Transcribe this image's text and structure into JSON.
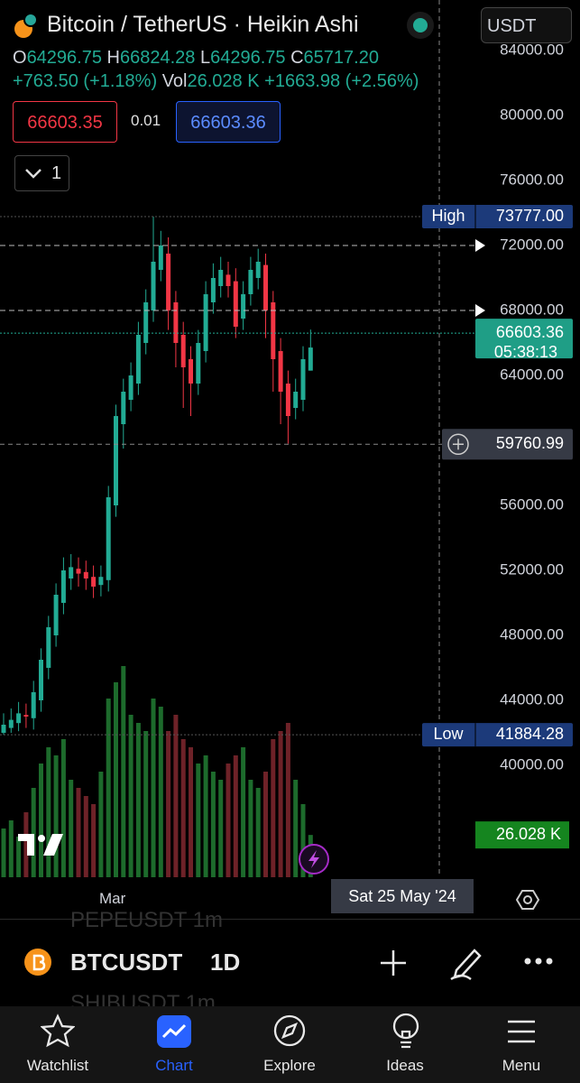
{
  "header": {
    "symbol_title": "Bitcoin / TetherUS · Heikin Ashi",
    "currency": "USDT",
    "ohlc": [
      {
        "key": "O",
        "value": "64296.75"
      },
      {
        "key": "H",
        "value": "66824.28"
      },
      {
        "key": "L",
        "value": "64296.75"
      },
      {
        "key": "C",
        "value": "65717.20"
      }
    ],
    "change": "+763.50 (+1.18%)",
    "vol_key": "Vol",
    "vol_value": "26.028 K",
    "vol_change": "+1663.98 (+2.56%)",
    "sell_price": "66603.35",
    "spread": "0.01",
    "buy_price": "66603.36",
    "indicator_count": "1"
  },
  "chart_data": {
    "type": "candlestick",
    "up_color": "#22ab94",
    "down_color": "#f23645",
    "up_volume_color": "#1d6b2c",
    "down_volume_color": "#6e2228",
    "grid": false,
    "open": [
      42000,
      42300,
      42600,
      43100,
      42900,
      44000,
      46000,
      48000,
      50000,
      51500,
      52100,
      51900,
      51600,
      51100,
      51400,
      56000,
      61000,
      62500,
      63500,
      66000,
      68000,
      70500,
      71500,
      68500,
      66500,
      65000,
      63500,
      65500,
      68500,
      69500,
      70200,
      69800,
      67500,
      69000,
      70000,
      70800,
      68500,
      65500,
      63500,
      62000,
      62500,
      64296.75
    ],
    "high": [
      43200,
      43500,
      43900,
      43800,
      45200,
      47200,
      49200,
      51200,
      52800,
      53000,
      52800,
      52600,
      52300,
      52300,
      57200,
      62200,
      63800,
      64800,
      67300,
      69300,
      73777,
      72900,
      72500,
      69200,
      67300,
      65800,
      66800,
      69800,
      70900,
      71300,
      71000,
      70600,
      69800,
      71300,
      71800,
      71500,
      69200,
      66300,
      64300,
      63800,
      65800,
      66824.28
    ],
    "low": [
      41884.28,
      42000,
      42100,
      42300,
      42200,
      43300,
      45300,
      47300,
      49300,
      50800,
      51000,
      50800,
      50300,
      50400,
      50700,
      55300,
      59500,
      61800,
      62800,
      65300,
      67300,
      69800,
      66800,
      64500,
      62000,
      61500,
      62800,
      64800,
      67800,
      68800,
      68800,
      66300,
      66800,
      68300,
      69300,
      66300,
      63000,
      61000,
      59800,
      61300,
      61800,
      64296.75
    ],
    "close": [
      42500,
      42800,
      43200,
      43000,
      44500,
      46500,
      48500,
      50500,
      52000,
      52200,
      51800,
      51500,
      51000,
      51600,
      56500,
      61500,
      63000,
      64000,
      66500,
      68500,
      71000,
      72000,
      68000,
      66000,
      64500,
      63500,
      66000,
      69000,
      70000,
      70500,
      69500,
      67000,
      69000,
      70500,
      71000,
      68000,
      65000,
      63000,
      61500,
      63000,
      65000,
      65717.2
    ],
    "volume": [
      30,
      35,
      25,
      40,
      55,
      70,
      80,
      75,
      85,
      60,
      55,
      50,
      45,
      65,
      110,
      120,
      130,
      100,
      95,
      90,
      110,
      105,
      90,
      100,
      85,
      80,
      70,
      75,
      65,
      60,
      70,
      75,
      80,
      60,
      55,
      65,
      85,
      90,
      95,
      60,
      45,
      26.028
    ],
    "volume_label": "26.028 K",
    "ylim": [
      33111,
      87111
    ],
    "yticks": [
      {
        "value": 84000,
        "label": "84000.00"
      },
      {
        "value": 80000,
        "label": "80000.00"
      },
      {
        "value": 76000,
        "label": "76000.00"
      },
      {
        "value": 72000,
        "label": "72000.00"
      },
      {
        "value": 68000,
        "label": "68000.00"
      },
      {
        "value": 64000,
        "label": "64000.00"
      },
      {
        "value": 56000,
        "label": "56000.00"
      },
      {
        "value": 52000,
        "label": "52000.00"
      },
      {
        "value": 48000,
        "label": "48000.00"
      },
      {
        "value": 44000,
        "label": "44000.00"
      },
      {
        "value": 40000,
        "label": "40000.00"
      }
    ],
    "x_label": "Mar",
    "markers": [
      {
        "name": "High",
        "value": 73777,
        "label": "73777.00"
      },
      {
        "name": "Low",
        "value": 41884.28,
        "label": "41884.28"
      }
    ],
    "alerts": [
      72000,
      68000
    ],
    "last_price": {
      "value": 66603.36,
      "label": "66603.36",
      "countdown": "05:38:13"
    },
    "crosshair": {
      "value": 59760.99,
      "label": "59760.99",
      "date": "Sat 25 May '24"
    }
  },
  "symbol_bar": {
    "prev": "PEPEUSDT 1m",
    "symbol": "BTCUSDT",
    "interval": "1D",
    "next": "SHIBUSDT 1m"
  },
  "nav": [
    {
      "label": "Watchlist"
    },
    {
      "label": "Chart"
    },
    {
      "label": "Explore"
    },
    {
      "label": "Ideas"
    },
    {
      "label": "Menu"
    }
  ]
}
